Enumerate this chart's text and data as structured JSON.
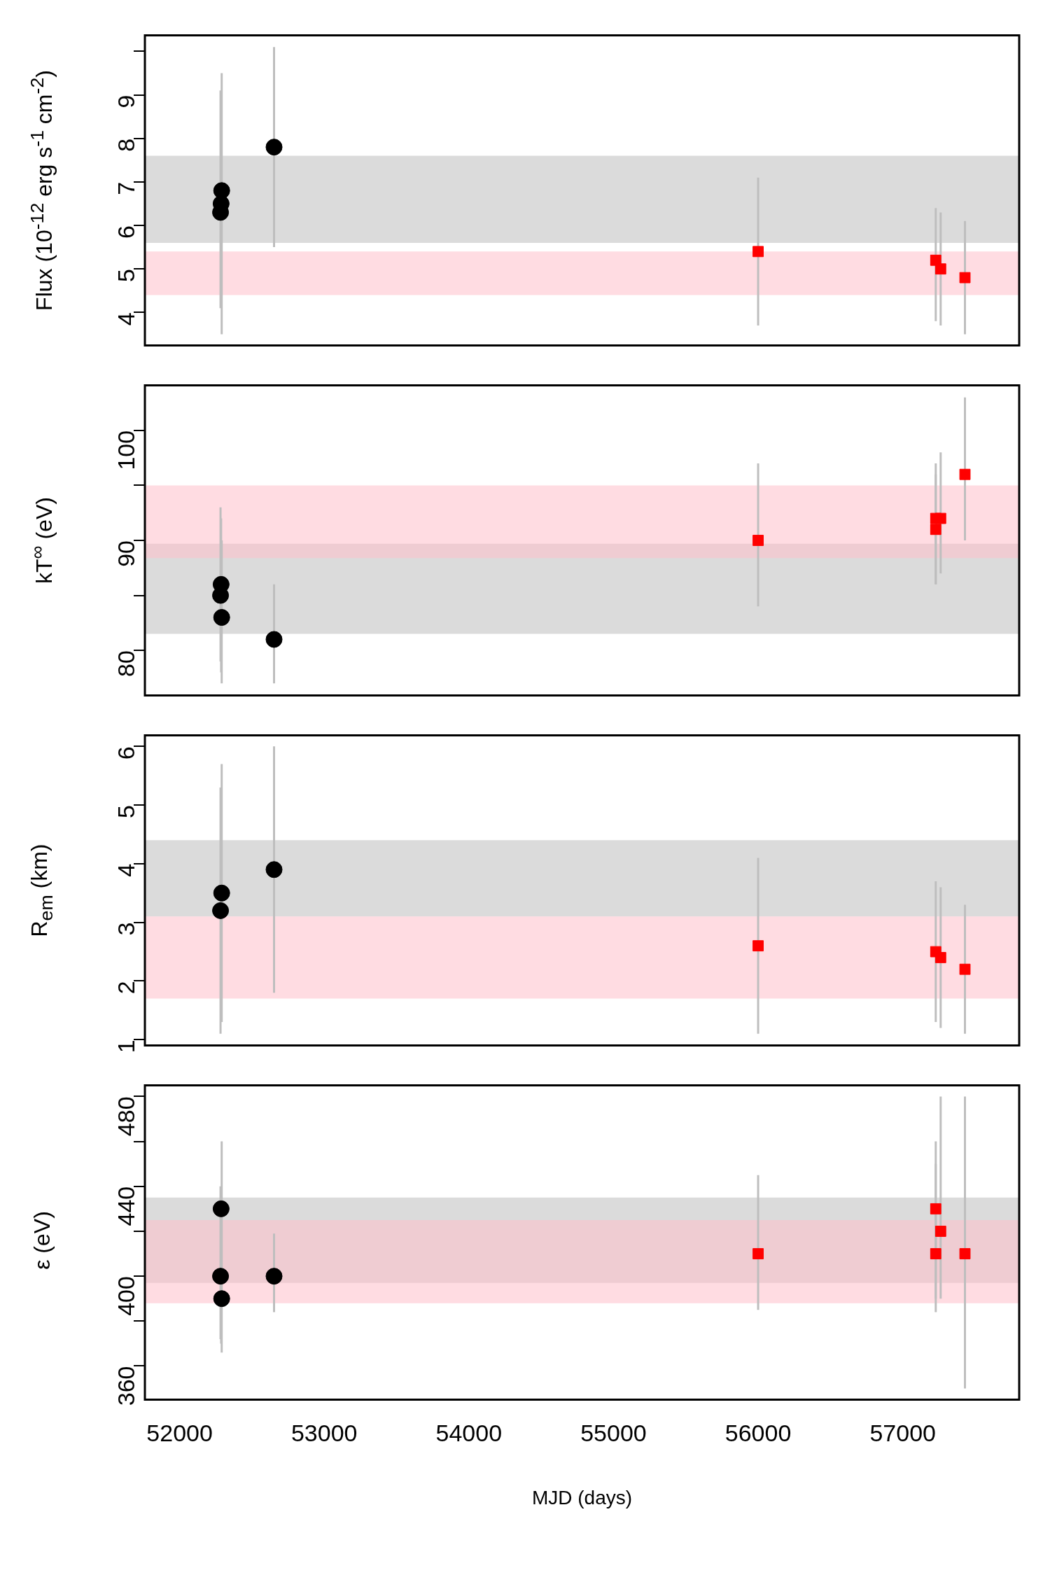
{
  "chart_data": [
    {
      "type": "scatter",
      "ylabel": "Flux (10$^{-12}$ erg s$^{-1}$ cm$^{-2}$)",
      "xlim": [
        51760,
        57805
      ],
      "ylim": [
        3.24,
        10.37
      ],
      "yticks": [
        4,
        5,
        6,
        7,
        8,
        9,
        {
          "value": 10,
          "label": null
        }
      ],
      "xticks": [
        52000,
        53000,
        54000,
        55000,
        56000,
        57000
      ],
      "tick_labels": "y",
      "grid": false,
      "legend": false,
      "series": [
        {
          "color": "#000000",
          "marker": "circle",
          "x": [
            52283,
            52287,
            52291,
            52653
          ],
          "values": [
            6.3,
            6.5,
            6.8,
            7.8
          ],
          "errors": [
            [
              4.1,
              9.1
            ],
            [
              4.2,
              9.0
            ],
            [
              3.5,
              9.5
            ],
            [
              5.5,
              10.1
            ]
          ]
        },
        {
          "color": "#ff0000",
          "marker": "square",
          "x": [
            56000,
            57228,
            57262,
            57430
          ],
          "values": [
            5.4,
            5.2,
            5.0,
            4.8
          ],
          "errors": [
            [
              3.7,
              7.1
            ],
            [
              3.8,
              6.4
            ],
            [
              3.7,
              6.3
            ],
            [
              3.5,
              6.1
            ]
          ]
        }
      ],
      "bands": [
        {
          "axis": "y",
          "from": 5.6,
          "to": 7.6,
          "color": "#bebebe"
        },
        {
          "axis": "y",
          "from": 4.4,
          "to": 5.4,
          "color": "#ffc0cb"
        }
      ]
    },
    {
      "type": "scatter",
      "ylabel": "kT$^{∞}$ (eV)",
      "xlim": [
        51760,
        57805
      ],
      "ylim": [
        75.9,
        104.1
      ],
      "yticks": [
        80,
        {
          "value": 85,
          "label": null
        },
        90,
        {
          "value": 95,
          "label": null
        },
        100
      ],
      "xticks": [
        52000,
        53000,
        54000,
        55000,
        56000,
        57000
      ],
      "tick_labels": "y",
      "grid": false,
      "legend": false,
      "series": [
        {
          "color": "#000000",
          "marker": "circle",
          "x": [
            52283,
            52287,
            52291,
            52653
          ],
          "values": [
            85,
            86,
            83,
            81
          ],
          "errors": [
            [
              79,
              93
            ],
            [
              78,
              92
            ],
            [
              77,
              90
            ],
            [
              77,
              86
            ]
          ]
        },
        {
          "color": "#ff0000",
          "marker": "square",
          "x": [
            56000,
            57228,
            57228,
            57262,
            57430
          ],
          "values": [
            90,
            92,
            91,
            92,
            96
          ],
          "errors": [
            [
              84,
              97
            ],
            [
              86,
              97
            ],
            [
              86,
              96
            ],
            [
              87,
              98
            ],
            [
              90,
              103
            ]
          ]
        }
      ],
      "bands": [
        {
          "axis": "y",
          "from": 81.5,
          "to": 89.7,
          "color": "#bebebe"
        },
        {
          "axis": "y",
          "from": 88.4,
          "to": 95,
          "color": "#ffc0cb"
        }
      ]
    },
    {
      "type": "scatter",
      "ylabel": "R$_{em}$ (km)",
      "xlim": [
        51760,
        57805
      ],
      "ylim": [
        0.9,
        6.19
      ],
      "yticks": [
        1,
        2,
        3,
        4,
        5,
        6
      ],
      "xticks": [
        52000,
        53000,
        54000,
        55000,
        56000,
        57000
      ],
      "tick_labels": "y",
      "grid": false,
      "legend": false,
      "series": [
        {
          "color": "#000000",
          "marker": "circle",
          "x": [
            52283,
            52291,
            52653
          ],
          "values": [
            3.2,
            3.5,
            3.9
          ],
          "errors": [
            [
              1.1,
              5.3
            ],
            [
              1.3,
              5.7
            ],
            [
              1.8,
              6.0
            ]
          ]
        },
        {
          "color": "#ff0000",
          "marker": "square",
          "x": [
            56000,
            57228,
            57262,
            57430
          ],
          "values": [
            2.6,
            2.5,
            2.4,
            2.2
          ],
          "errors": [
            [
              1.1,
              4.1
            ],
            [
              1.3,
              3.7
            ],
            [
              1.2,
              3.6
            ],
            [
              1.1,
              3.3
            ]
          ]
        }
      ],
      "bands": [
        {
          "axis": "y",
          "from": 3.1,
          "to": 4.4,
          "color": "#bebebe"
        },
        {
          "axis": "y",
          "from": 1.7,
          "to": 3.1,
          "color": "#ffc0cb"
        }
      ]
    },
    {
      "type": "scatter",
      "ylabel": "ε (eV)",
      "xlabel": "MJD (days)",
      "xlim": [
        51760,
        57805
      ],
      "ylim": [
        345,
        485
      ],
      "yticks": [
        360,
        {
          "value": 380,
          "label": null
        },
        400,
        {
          "value": 420,
          "label": null
        },
        440,
        {
          "value": 460,
          "label": null
        },
        480
      ],
      "xticks": [
        52000,
        53000,
        54000,
        55000,
        56000,
        57000
      ],
      "grid": false,
      "legend": false,
      "series": [
        {
          "color": "#000000",
          "marker": "circle",
          "x": [
            52283,
            52287,
            52291,
            52653
          ],
          "values": [
            400,
            430,
            390,
            400
          ],
          "errors": [
            [
              372,
              440
            ],
            [
              370,
              438
            ],
            [
              366,
              460
            ],
            [
              384,
              419
            ]
          ]
        },
        {
          "color": "#ff0000",
          "marker": "square",
          "x": [
            56000,
            57228,
            57228,
            57262,
            57430
          ],
          "values": [
            410,
            430,
            410,
            420,
            410
          ],
          "errors": [
            [
              385,
              445
            ],
            [
              384,
              460
            ],
            [
              390,
              450
            ],
            [
              390,
              480
            ],
            [
              350,
              480
            ]
          ]
        }
      ],
      "bands": [
        {
          "axis": "y",
          "from": 397,
          "to": 435,
          "color": "#bebebe"
        },
        {
          "axis": "y",
          "from": 388,
          "to": 425,
          "color": "#ffc0cb"
        }
      ]
    }
  ]
}
